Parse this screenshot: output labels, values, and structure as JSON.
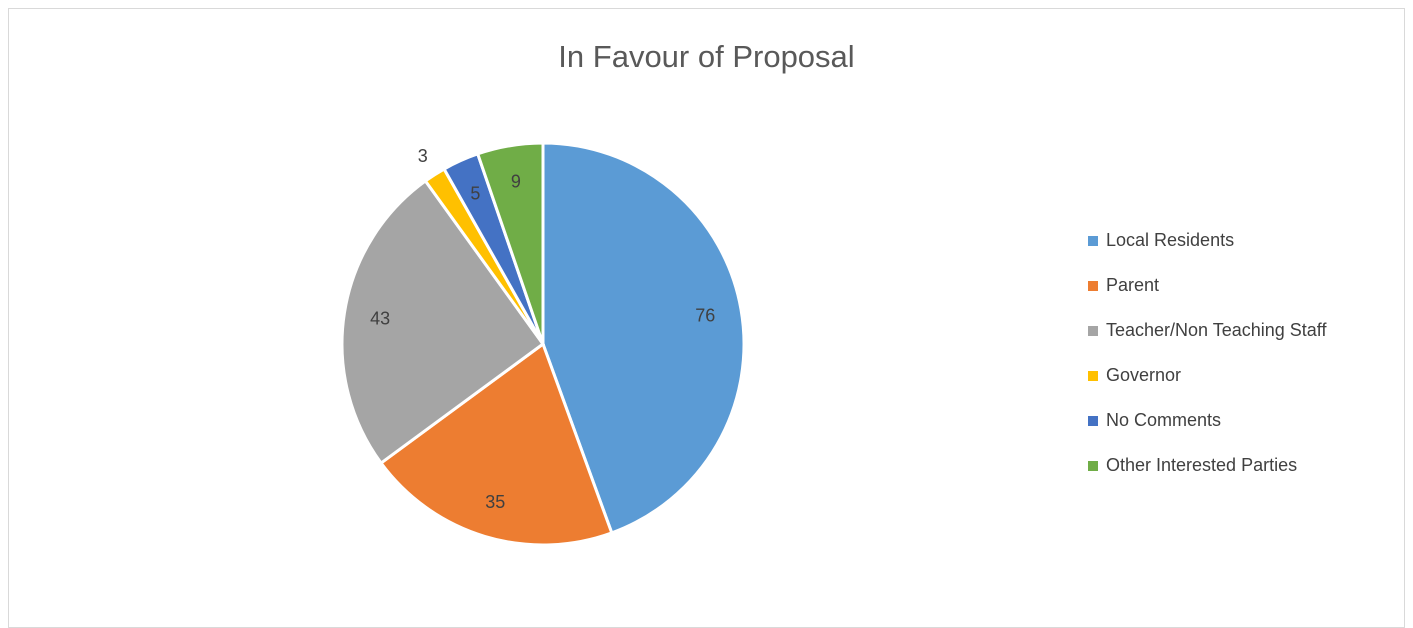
{
  "chart_data": {
    "type": "pie",
    "title": "In Favour of Proposal",
    "categories": [
      "Local Residents",
      "Parent",
      "Teacher/Non Teaching Staff",
      "Governor",
      "No Comments",
      "Other Interested Parties"
    ],
    "values": [
      76,
      35,
      43,
      3,
      5,
      9
    ],
    "colors": [
      "#5b9bd5",
      "#ed7d31",
      "#a5a5a5",
      "#ffc000",
      "#4472c4",
      "#70ad47"
    ],
    "legend_position": "right",
    "data_labels": true
  }
}
